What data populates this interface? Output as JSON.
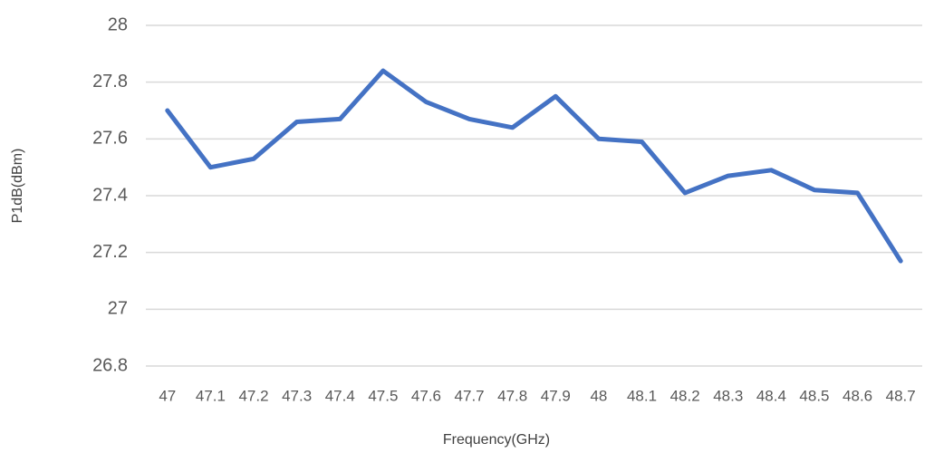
{
  "chart_data": {
    "type": "line",
    "x_label": "Frequency(GHz)",
    "y_label": "P1dB(dBm)",
    "categories": [
      "47",
      "47.1",
      "47.2",
      "47.3",
      "47.4",
      "47.5",
      "47.6",
      "47.7",
      "47.8",
      "47.9",
      "48",
      "48.1",
      "48.2",
      "48.3",
      "48.4",
      "48.5",
      "48.6",
      "48.7"
    ],
    "values": [
      27.7,
      27.5,
      27.53,
      27.66,
      27.67,
      27.84,
      27.73,
      27.67,
      27.64,
      27.75,
      27.6,
      27.59,
      27.41,
      27.47,
      27.49,
      27.42,
      27.41,
      27.17
    ],
    "color": "#4472c4",
    "ylim": [
      26.8,
      28
    ],
    "yticks": [
      26.8,
      27,
      27.2,
      27.4,
      27.6,
      27.8,
      28
    ],
    "grid": true
  }
}
